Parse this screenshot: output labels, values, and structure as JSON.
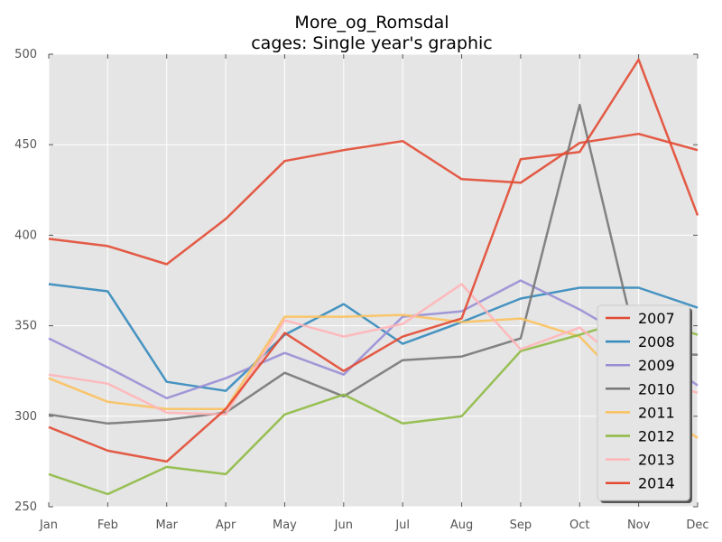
{
  "chart_data": {
    "type": "line",
    "title": "More_og_Romsdal",
    "subtitle": "cages: Single year's graphic",
    "xlabel": "",
    "ylabel": "",
    "categories": [
      "Jan",
      "Feb",
      "Mar",
      "Apr",
      "May",
      "Jun",
      "Jul",
      "Aug",
      "Sep",
      "Oct",
      "Nov",
      "Dec"
    ],
    "ylim": [
      250,
      500
    ],
    "yticks": [
      250,
      300,
      350,
      400,
      450,
      500
    ],
    "grid": true,
    "legend_position": "lower-right",
    "series": [
      {
        "name": "2007",
        "color": "#E24A33",
        "values": [
          398,
          394,
          384,
          409,
          441,
          447,
          452,
          431,
          429,
          451,
          456,
          447
        ]
      },
      {
        "name": "2008",
        "color": "#348ABD",
        "values": [
          373,
          369,
          319,
          314,
          345,
          362,
          340,
          352,
          365,
          371,
          371,
          360
        ]
      },
      {
        "name": "2009",
        "color": "#988ED5",
        "values": [
          343,
          327,
          310,
          321,
          335,
          323,
          355,
          358,
          375,
          359,
          340,
          317
        ]
      },
      {
        "name": "2010",
        "color": "#777777",
        "values": [
          301,
          296,
          298,
          302,
          324,
          311,
          331,
          333,
          343,
          472,
          335,
          334
        ]
      },
      {
        "name": "2011",
        "color": "#FBC15E",
        "values": [
          321,
          308,
          304,
          304,
          355,
          355,
          356,
          352,
          354,
          344,
          310,
          288
        ]
      },
      {
        "name": "2012",
        "color": "#8EBA42",
        "values": [
          268,
          257,
          272,
          268,
          301,
          312,
          296,
          300,
          336,
          345,
          355,
          345
        ]
      },
      {
        "name": "2013",
        "color": "#FFB5B8",
        "values": [
          323,
          318,
          302,
          301,
          353,
          344,
          351,
          373,
          337,
          349,
          322,
          313
        ]
      },
      {
        "name": "2014",
        "color": "#E24A33",
        "values": [
          294,
          281,
          275,
          304,
          346,
          325,
          344,
          354,
          442,
          446,
          497,
          411
        ]
      }
    ]
  }
}
